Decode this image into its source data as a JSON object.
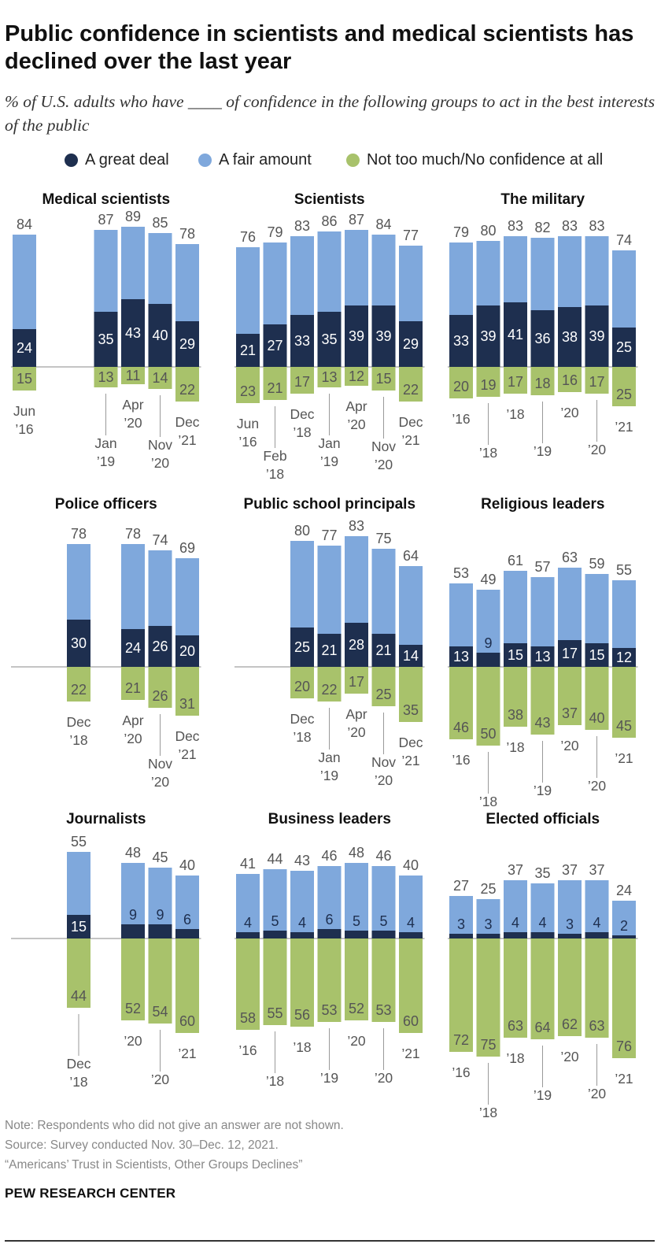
{
  "title": "Public confidence in scientists and medical scientists has declined over the last year",
  "subtitle": "% of U.S. adults who have ____ of confidence in the following groups to act in the best interests of the public",
  "legend": [
    {
      "label": "A great deal",
      "color": "#1e2f4f"
    },
    {
      "label": "A fair amount",
      "color": "#7fa8dc"
    },
    {
      "label": "Not too much/No confidence at all",
      "color": "#a8c26b"
    }
  ],
  "notes": {
    "note": "Note: Respondents who did not give an answer are not shown.",
    "source": "Source: Survey conducted Nov. 30–Dec. 12, 2021.",
    "report": "“Americans’ Trust in Scientists, Other Groups Declines”"
  },
  "brand": "PEW RESEARCH CENTER",
  "chart_data": [
    {
      "type": "bar",
      "title": "Medical scientists",
      "slots": 7,
      "bars": [
        {
          "slot": 0,
          "label": "Jun\n’16",
          "label_row": 0,
          "great": 24,
          "fair_total": 84,
          "not": 15
        },
        {
          "slot": 3,
          "label": "Jan\n’19",
          "label_row": 1,
          "great": 35,
          "fair_total": 87,
          "not": 13
        },
        {
          "slot": 4,
          "label": "Apr\n’20",
          "label_row": 0,
          "great": 43,
          "fair_total": 89,
          "not": 11
        },
        {
          "slot": 5,
          "label": "Nov\n’20",
          "label_row": 1,
          "great": 40,
          "fair_total": 85,
          "not": 14
        },
        {
          "slot": 6,
          "label": "Dec\n’21",
          "label_row": 0,
          "great": 29,
          "fair_total": 78,
          "not": 22
        }
      ]
    },
    {
      "type": "bar",
      "title": "Scientists",
      "slots": 7,
      "bars": [
        {
          "slot": 0,
          "label": "Jun\n’16",
          "label_row": 0,
          "great": 21,
          "fair_total": 76,
          "not": 23
        },
        {
          "slot": 1,
          "label": "Feb\n’18",
          "label_row": 1,
          "great": 27,
          "fair_total": 79,
          "not": 21
        },
        {
          "slot": 2,
          "label": "Dec\n’18",
          "label_row": 0,
          "great": 33,
          "fair_total": 83,
          "not": 17
        },
        {
          "slot": 3,
          "label": "Jan\n’19",
          "label_row": 1,
          "great": 35,
          "fair_total": 86,
          "not": 13
        },
        {
          "slot": 4,
          "label": "Apr\n’20",
          "label_row": 0,
          "great": 39,
          "fair_total": 87,
          "not": 12
        },
        {
          "slot": 5,
          "label": "Nov\n’20",
          "label_row": 1,
          "great": 39,
          "fair_total": 84,
          "not": 15
        },
        {
          "slot": 6,
          "label": "Dec\n’21",
          "label_row": 0,
          "great": 29,
          "fair_total": 77,
          "not": 22
        }
      ]
    },
    {
      "type": "bar",
      "title": "The military",
      "slots": 7,
      "bars": [
        {
          "slot": 0,
          "label": "’16",
          "label_row": 0,
          "great": 33,
          "fair_total": 79,
          "not": 20
        },
        {
          "slot": 1,
          "label": "’18",
          "label_row": 1,
          "great": 39,
          "fair_total": 80,
          "not": 19
        },
        {
          "slot": 2,
          "label": "’18",
          "label_row": 0,
          "great": 41,
          "fair_total": 83,
          "not": 17
        },
        {
          "slot": 3,
          "label": "’19",
          "label_row": 1,
          "great": 36,
          "fair_total": 82,
          "not": 18
        },
        {
          "slot": 4,
          "label": "’20",
          "label_row": 0,
          "great": 38,
          "fair_total": 83,
          "not": 16
        },
        {
          "slot": 5,
          "label": "’20",
          "label_row": 1,
          "great": 39,
          "fair_total": 83,
          "not": 17
        },
        {
          "slot": 6,
          "label": "’21",
          "label_row": 0,
          "great": 25,
          "fair_total": 74,
          "not": 25
        }
      ]
    },
    {
      "type": "bar",
      "title": "Police officers",
      "slots": 7,
      "bars": [
        {
          "slot": 2,
          "label": "Dec\n’18",
          "label_row": 0,
          "great": 30,
          "fair_total": 78,
          "not": 22
        },
        {
          "slot": 4,
          "label": "Apr\n’20",
          "label_row": 0,
          "great": 24,
          "fair_total": 78,
          "not": 21
        },
        {
          "slot": 5,
          "label": "Nov\n’20",
          "label_row": 1,
          "great": 26,
          "fair_total": 74,
          "not": 26
        },
        {
          "slot": 6,
          "label": "Dec\n’21",
          "label_row": 0,
          "great": 20,
          "fair_total": 69,
          "not": 31
        }
      ]
    },
    {
      "type": "bar",
      "title": "Public school principals",
      "slots": 7,
      "bars": [
        {
          "slot": 2,
          "label": "Dec\n’18",
          "label_row": 0,
          "great": 25,
          "fair_total": 80,
          "not": 20
        },
        {
          "slot": 3,
          "label": "Jan\n’19",
          "label_row": 1,
          "great": 21,
          "fair_total": 77,
          "not": 22
        },
        {
          "slot": 4,
          "label": "Apr\n’20",
          "label_row": 0,
          "great": 28,
          "fair_total": 83,
          "not": 17
        },
        {
          "slot": 5,
          "label": "Nov\n’20",
          "label_row": 1,
          "great": 21,
          "fair_total": 75,
          "not": 25
        },
        {
          "slot": 6,
          "label": "Dec\n’21",
          "label_row": 0,
          "great": 14,
          "fair_total": 64,
          "not": 35
        }
      ]
    },
    {
      "type": "bar",
      "title": "Religious leaders",
      "slots": 7,
      "bars": [
        {
          "slot": 0,
          "label": "’16",
          "label_row": 0,
          "great": 13,
          "fair_total": 53,
          "not": 46
        },
        {
          "slot": 1,
          "label": "’18",
          "label_row": 1,
          "great": 9,
          "fair_total": 49,
          "not": 50
        },
        {
          "slot": 2,
          "label": "’18",
          "label_row": 0,
          "great": 15,
          "fair_total": 61,
          "not": 38
        },
        {
          "slot": 3,
          "label": "’19",
          "label_row": 1,
          "great": 13,
          "fair_total": 57,
          "not": 43
        },
        {
          "slot": 4,
          "label": "’20",
          "label_row": 0,
          "great": 17,
          "fair_total": 63,
          "not": 37
        },
        {
          "slot": 5,
          "label": "’20",
          "label_row": 1,
          "great": 15,
          "fair_total": 59,
          "not": 40
        },
        {
          "slot": 6,
          "label": "’21",
          "label_row": 0,
          "great": 12,
          "fair_total": 55,
          "not": 45
        }
      ]
    },
    {
      "type": "bar",
      "title": "Journalists",
      "slots": 7,
      "bars": [
        {
          "slot": 2,
          "label": "Dec\n’18",
          "label_row": 1,
          "great": 15,
          "fair_total": 55,
          "not": 44
        },
        {
          "slot": 4,
          "label": "’20",
          "label_row": 0,
          "great": 9,
          "fair_total": 48,
          "not": 52
        },
        {
          "slot": 5,
          "label": "’20",
          "label_row": 1,
          "great": 9,
          "fair_total": 45,
          "not": 54
        },
        {
          "slot": 6,
          "label": "’21",
          "label_row": 0,
          "great": 6,
          "fair_total": 40,
          "not": 60
        }
      ]
    },
    {
      "type": "bar",
      "title": "Business leaders",
      "slots": 7,
      "bars": [
        {
          "slot": 0,
          "label": "’16",
          "label_row": 0,
          "great": 4,
          "fair_total": 41,
          "not": 58
        },
        {
          "slot": 1,
          "label": "’18",
          "label_row": 1,
          "great": 5,
          "fair_total": 44,
          "not": 55
        },
        {
          "slot": 2,
          "label": "’18",
          "label_row": 0,
          "great": 4,
          "fair_total": 43,
          "not": 56
        },
        {
          "slot": 3,
          "label": "’19",
          "label_row": 1,
          "great": 6,
          "fair_total": 46,
          "not": 53
        },
        {
          "slot": 4,
          "label": "’20",
          "label_row": 0,
          "great": 5,
          "fair_total": 48,
          "not": 52
        },
        {
          "slot": 5,
          "label": "’20",
          "label_row": 1,
          "great": 5,
          "fair_total": 46,
          "not": 53
        },
        {
          "slot": 6,
          "label": "’21",
          "label_row": 0,
          "great": 4,
          "fair_total": 40,
          "not": 60
        }
      ]
    },
    {
      "type": "bar",
      "title": "Elected officials",
      "slots": 7,
      "bars": [
        {
          "slot": 0,
          "label": "’16",
          "label_row": 0,
          "great": 3,
          "fair_total": 27,
          "not": 72
        },
        {
          "slot": 1,
          "label": "’18",
          "label_row": 1,
          "great": 3,
          "fair_total": 25,
          "not": 75
        },
        {
          "slot": 2,
          "label": "’18",
          "label_row": 0,
          "great": 4,
          "fair_total": 37,
          "not": 63
        },
        {
          "slot": 3,
          "label": "’19",
          "label_row": 1,
          "great": 4,
          "fair_total": 35,
          "not": 64
        },
        {
          "slot": 4,
          "label": "’20",
          "label_row": 0,
          "great": 3,
          "fair_total": 37,
          "not": 62
        },
        {
          "slot": 5,
          "label": "’20",
          "label_row": 1,
          "great": 4,
          "fair_total": 37,
          "not": 63
        },
        {
          "slot": 6,
          "label": "’21",
          "label_row": 0,
          "great": 2,
          "fair_total": 24,
          "not": 76
        }
      ]
    }
  ]
}
